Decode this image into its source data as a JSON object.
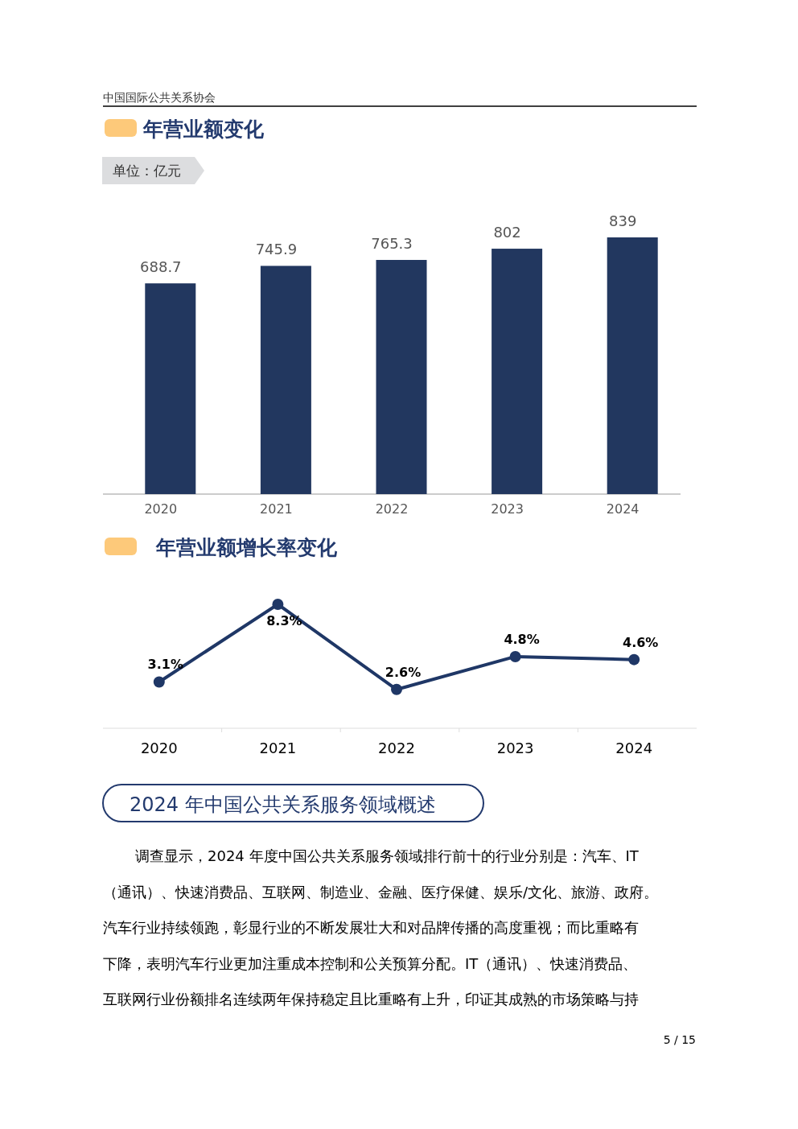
{
  "chart_data": [
    {
      "type": "bar",
      "title": "年营业额变化",
      "subtitle": "单位：亿元",
      "categories": [
        "2020",
        "2021",
        "2022",
        "2023",
        "2024"
      ],
      "values": [
        688.7,
        745.9,
        765.3,
        802,
        839
      ],
      "color": "#22375f",
      "data_labels": true,
      "annotations": [
        "中国国际公共关系协会"
      ]
    },
    {
      "type": "line",
      "title": "年营业额增长率变化",
      "categories": [
        "2020",
        "2021",
        "2022",
        "2023",
        "2024"
      ],
      "values": [
        3.1,
        8.3,
        2.6,
        4.8,
        4.6
      ],
      "value_labels": [
        "3.1%",
        "8.3%",
        "2.6%",
        "4.8%",
        "4.6%"
      ],
      "color": "#1f3766",
      "marker": "circle"
    },
    {
      "type": "other",
      "title": "2024 年中国公共关系服务领域概述",
      "annotations": [
        "调查显示，2024  年度中国公共关系服务领域排行前十的行业分别是：汽车、IT",
        "（通讯）、快速消费品、互联网、制造业、金融、医疗保健、娱乐/文化、旅游、政府。",
        "汽车行业持续领跑，彰显行业的不断发展壮大和对品牌传播的高度重视；而比重略有",
        "下降，表明汽车行业更加注重成本控制和公关预算分配。IT（通讯）、快速消费品、",
        "互联网行业份额排名连续两年保持稳定且比重略有上升，印证其成熟的市场策略与持",
        "5 / 15"
      ]
    }
  ]
}
